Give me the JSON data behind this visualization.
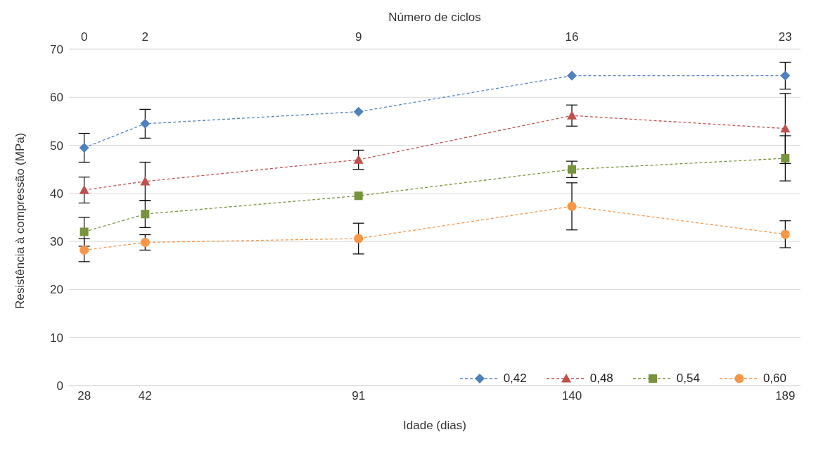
{
  "chart_data": {
    "type": "line",
    "xlabel": "Idade (dias)",
    "x2label": "Número de ciclos",
    "ylabel": "Resistência à compressão (MPa)",
    "x": [
      28,
      42,
      91,
      140,
      189
    ],
    "xlim": [
      24.5,
      192.5
    ],
    "xticks": [
      28,
      42,
      91,
      140,
      189
    ],
    "x2lim": [
      -0.5,
      23.5
    ],
    "x2ticks": [
      0,
      2,
      9,
      16,
      23
    ],
    "ylim": [
      0,
      70
    ],
    "yticks": [
      0,
      10,
      20,
      30,
      40,
      50,
      60,
      70
    ],
    "grid": "y",
    "legend": "bottom right",
    "line_style": "dashed",
    "series": [
      {
        "name": "0,42",
        "color": "#4f81bd",
        "marker": "diamond",
        "values": [
          49.5,
          54.5,
          57,
          64.5,
          64.5
        ],
        "errors": [
          3,
          3,
          null,
          null,
          2.8
        ]
      },
      {
        "name": "0,48",
        "color": "#c0504d",
        "marker": "triangle",
        "values": [
          40.7,
          42.5,
          47,
          56.2,
          53.5
        ],
        "errors": [
          2.7,
          4,
          2,
          2.2,
          7.3
        ]
      },
      {
        "name": "0,54",
        "color": "#77933c",
        "marker": "square",
        "values": [
          32,
          35.7,
          39.5,
          45,
          47.3
        ],
        "errors": [
          3,
          2.8,
          null,
          1.7,
          4.7
        ]
      },
      {
        "name": "0,60",
        "color": "#f79646",
        "marker": "circle",
        "values": [
          28.2,
          29.8,
          30.6,
          37.3,
          31.5
        ],
        "errors": [
          2.4,
          1.6,
          3.2,
          4.9,
          2.8
        ]
      }
    ]
  }
}
